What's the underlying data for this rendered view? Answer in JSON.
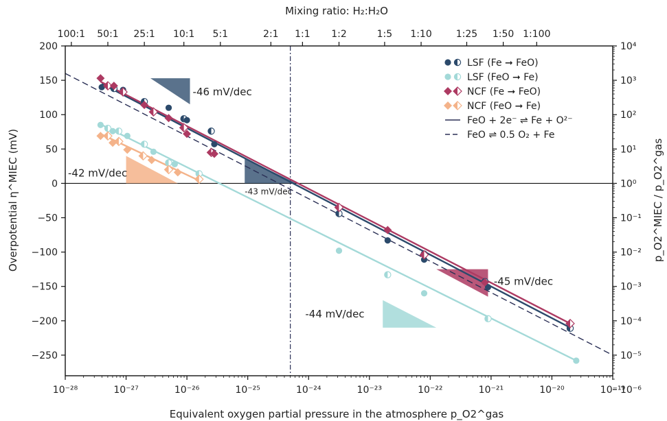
{
  "chart_data": {
    "type": "scatter",
    "title": "",
    "xlabel": "Equivalent oxygen partial pressure in the atmosphere p_O2^gas",
    "ylabel": "Overpotential η^MIEC (mV)",
    "y2label": "p_O2^MIEC / p_O2^gas",
    "x2label": "Mixing ratio: H₂:H₂O",
    "x_scale": "log",
    "xlim_exp": [
      -28,
      -19
    ],
    "ylim": [
      -280,
      200
    ],
    "x_ticks_exp": [
      -28,
      -27,
      -26,
      -25,
      -24,
      -23,
      -22,
      -21,
      -20,
      -19
    ],
    "y_ticks": [
      200,
      150,
      100,
      50,
      0,
      -50,
      -100,
      -150,
      -200,
      -250
    ],
    "y2_ticks_exp": [
      4,
      3,
      2,
      1,
      0,
      -1,
      -2,
      -3,
      -4,
      -5,
      -6
    ],
    "top_ticks": [
      {
        "label": "100:1",
        "x_exp": -27.9
      },
      {
        "label": "50:1",
        "x_exp": -27.3
      },
      {
        "label": "25:1",
        "x_exp": -26.7
      },
      {
        "label": "10:1",
        "x_exp": -26.05
      },
      {
        "label": "5:1",
        "x_exp": -25.45
      },
      {
        "label": "2:1",
        "x_exp": -24.62
      },
      {
        "label": "1:1",
        "x_exp": -24.1
      },
      {
        "label": "1:2",
        "x_exp": -23.5
      },
      {
        "label": "1:5",
        "x_exp": -22.75
      },
      {
        "label": "1:10",
        "x_exp": -22.15
      },
      {
        "label": "1:25",
        "x_exp": -21.4
      },
      {
        "label": "1:50",
        "x_exp": -20.8
      },
      {
        "label": "1:100",
        "x_exp": -20.25
      }
    ],
    "vline_exp": -24.3,
    "colors": {
      "LSF_red": "#2c4a6b",
      "LSF_ox": "#a3d9d8",
      "NCF_red": "#ad3a62",
      "NCF_ox": "#f4b38a",
      "theory": "#2a2f55"
    },
    "legend": {
      "placement": "top-right",
      "entries": [
        {
          "label": "LSF (Fe ➞ FeO)"
        },
        {
          "label": "LSF (FeO ➞ Fe)"
        },
        {
          "label": "NCF (Fe ➞ FeO)"
        },
        {
          "label": "NCF (FeO ➞ Fe)"
        },
        {
          "label": "FeO + 2e⁻ ⇌ Fe + O²⁻"
        },
        {
          "label": "FeO ⇌ 0.5 O₂ + Fe"
        }
      ]
    },
    "series": [
      {
        "key": "LSF_red",
        "marker": "circle",
        "points": [
          [
            -27.4,
            140
          ],
          [
            -27.2,
            138
          ],
          [
            -27.05,
            136
          ],
          [
            -26.7,
            119
          ],
          [
            -26.3,
            110
          ],
          [
            -26.05,
            94
          ],
          [
            -26.0,
            92
          ],
          [
            -25.6,
            76
          ],
          [
            -25.55,
            57
          ],
          [
            -23.5,
            -44
          ],
          [
            -22.7,
            -83
          ],
          [
            -22.1,
            -103
          ],
          [
            -22.1,
            -111
          ],
          [
            -21.1,
            -143
          ],
          [
            -21.05,
            -151
          ],
          [
            -19.7,
            -211
          ]
        ],
        "fit": [
          [
            -27.4,
            145
          ],
          [
            -19.7,
            -210
          ]
        ]
      },
      {
        "key": "LSF_ox",
        "marker": "circle",
        "points": [
          [
            -27.42,
            85
          ],
          [
            -27.3,
            80
          ],
          [
            -27.22,
            76
          ],
          [
            -27.12,
            76
          ],
          [
            -26.98,
            69
          ],
          [
            -26.7,
            57
          ],
          [
            -26.55,
            46
          ],
          [
            -26.3,
            30
          ],
          [
            -26.2,
            28
          ],
          [
            -25.8,
            14
          ],
          [
            -23.5,
            -98
          ],
          [
            -22.7,
            -133
          ],
          [
            -22.1,
            -160
          ],
          [
            -21.05,
            -197
          ],
          [
            -19.6,
            -258
          ]
        ],
        "fit": [
          [
            -27.42,
            86
          ],
          [
            -19.6,
            -258
          ]
        ]
      },
      {
        "key": "NCF_red",
        "marker": "diamond",
        "points": [
          [
            -27.42,
            153
          ],
          [
            -27.3,
            142
          ],
          [
            -27.2,
            142
          ],
          [
            -27.05,
            133
          ],
          [
            -26.7,
            114
          ],
          [
            -26.55,
            104
          ],
          [
            -26.3,
            95
          ],
          [
            -26.05,
            81
          ],
          [
            -26.0,
            72
          ],
          [
            -25.6,
            45
          ],
          [
            -25.55,
            43
          ],
          [
            -23.5,
            -35
          ],
          [
            -22.7,
            -68
          ],
          [
            -22.1,
            -104
          ],
          [
            -21.1,
            -144
          ],
          [
            -19.7,
            -204
          ]
        ],
        "fit": [
          [
            -27.42,
            148
          ],
          [
            -19.7,
            -204
          ]
        ]
      },
      {
        "key": "NCF_ox",
        "marker": "diamond",
        "points": [
          [
            -27.42,
            69
          ],
          [
            -27.3,
            69
          ],
          [
            -27.22,
            59
          ],
          [
            -27.12,
            61
          ],
          [
            -26.98,
            49
          ],
          [
            -26.72,
            40
          ],
          [
            -26.58,
            34
          ],
          [
            -26.3,
            20
          ],
          [
            -26.15,
            16
          ],
          [
            -25.8,
            6
          ]
        ],
        "fit": [
          [
            -27.42,
            72
          ],
          [
            -25.8,
            4
          ]
        ]
      }
    ],
    "theory_lines": [
      {
        "key": "theory_dash",
        "style": "dashed",
        "points": [
          [
            -28,
            160
          ],
          [
            -19,
            -250
          ]
        ]
      },
      {
        "key": "theory_solid",
        "style": "solid",
        "points": [
          [
            -28,
            160
          ],
          [
            -19,
            -250
          ]
        ]
      }
    ],
    "slope_annotations": [
      {
        "label": "-46 mV/dec",
        "key": "LSF_red",
        "triangle": [
          [
            -26.6,
            153
          ],
          [
            -25.95,
            153
          ],
          [
            -25.95,
            115
          ]
        ],
        "label_at": [
          -25.95,
          133
        ]
      },
      {
        "label": "-42 mV/dec",
        "key": "NCF_ox",
        "triangle": [
          [
            -27.0,
            40
          ],
          [
            -27.0,
            0
          ],
          [
            -26.15,
            0
          ]
        ],
        "label_at": [
          -28.0,
          15
        ]
      },
      {
        "label": "-43 mV/dec",
        "key": "LSF_red",
        "triangle": [
          [
            -25.05,
            37
          ],
          [
            -25.05,
            0
          ],
          [
            -24.2,
            0
          ]
        ],
        "label_at": [
          -25.05,
          -11
        ]
      },
      {
        "label": "-45 mV/dec",
        "key": "NCF_red",
        "triangle": [
          [
            -21.9,
            -125
          ],
          [
            -21.05,
            -125
          ],
          [
            -21.05,
            -165
          ]
        ],
        "label_at": [
          -21.0,
          -143
        ]
      },
      {
        "label": "-44 mV/dec",
        "key": "LSF_ox",
        "triangle": [
          [
            -22.78,
            -170
          ],
          [
            -22.78,
            -210
          ],
          [
            -21.9,
            -210
          ]
        ],
        "label_at": [
          -24.1,
          -190
        ]
      }
    ]
  }
}
